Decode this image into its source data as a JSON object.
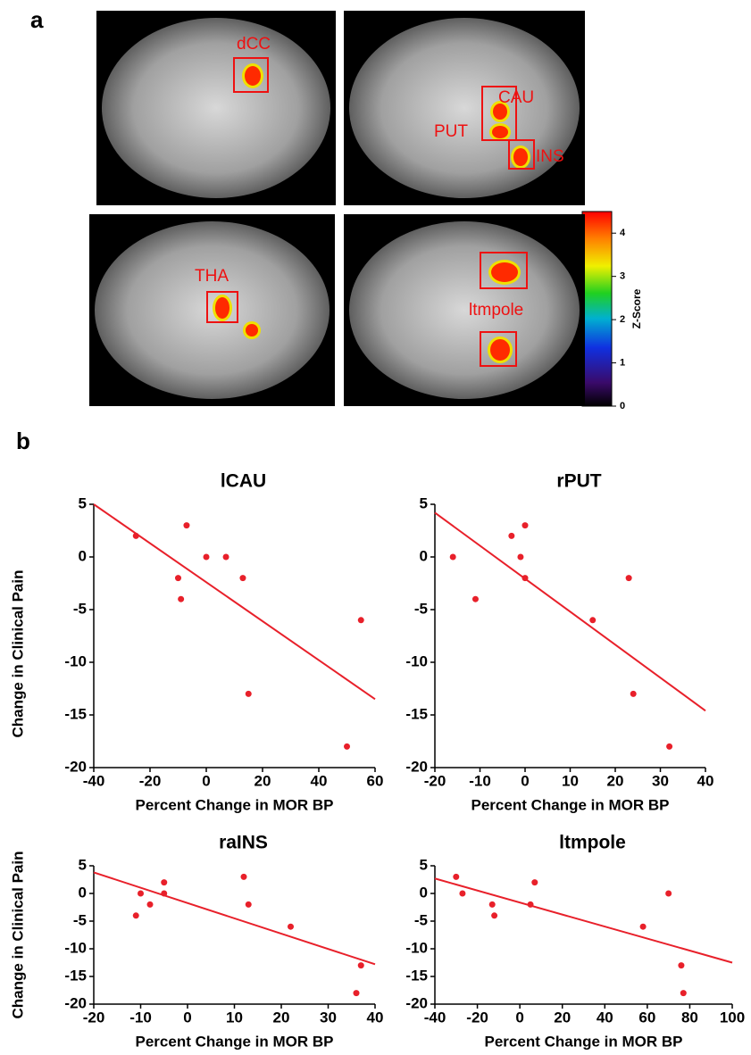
{
  "panel_a": {
    "label": "a",
    "images": [
      {
        "regions": [
          "dCC"
        ]
      },
      {
        "regions": [
          "CAU",
          "PUT",
          "INS"
        ]
      },
      {
        "regions": [
          "THA"
        ]
      },
      {
        "regions": [
          "ltmpole"
        ]
      }
    ],
    "colorbar": {
      "label": "Z-Score",
      "lim": [
        0,
        4.5
      ],
      "ticks": [
        0,
        1,
        2,
        3,
        4
      ]
    }
  },
  "panel_b": {
    "label": "b"
  },
  "chart_data": [
    {
      "type": "scatter",
      "title": "lCAU",
      "xlabel": "Percent Change in MOR BP",
      "ylabel": "Change in Clinical Pain",
      "x": [
        -25,
        -7,
        -10,
        -9,
        0,
        7,
        13,
        15,
        50,
        55
      ],
      "values": [
        2,
        3,
        -2,
        -4,
        0,
        0,
        -2,
        -13,
        -18,
        -6
      ],
      "color": "#e8202a",
      "trend": {
        "x": [
          -40,
          60
        ],
        "y": [
          5,
          -13.5
        ]
      },
      "xlim": [
        -40,
        60
      ],
      "xticks": [
        -40,
        -20,
        0,
        20,
        40,
        60
      ],
      "ylim": [
        -20,
        5
      ],
      "yticks": [
        5,
        0,
        -5,
        -10,
        -15,
        -20
      ]
    },
    {
      "type": "scatter",
      "title": "rPUT",
      "xlabel": "Percent Change in MOR BP",
      "x": [
        -16,
        -11,
        -3,
        -1,
        0,
        0,
        15,
        23,
        24,
        32
      ],
      "values": [
        0,
        -4,
        2,
        0,
        3,
        -2,
        -6,
        -2,
        -13,
        -18
      ],
      "color": "#e8202a",
      "trend": {
        "x": [
          -20,
          40
        ],
        "y": [
          4.2,
          -14.6
        ]
      },
      "xlim": [
        -20,
        40
      ],
      "xticks": [
        -20,
        -10,
        0,
        10,
        20,
        30,
        40
      ],
      "ylim": [
        -20,
        5
      ],
      "yticks": [
        5,
        0,
        -5,
        -10,
        -15,
        -20
      ]
    },
    {
      "type": "scatter",
      "title": "raINS",
      "xlabel": "Percent Change in MOR BP",
      "ylabel": "Change in Clinical Pain",
      "x": [
        -11,
        -10,
        -8,
        -5,
        -5,
        12,
        13,
        22,
        37,
        36
      ],
      "values": [
        -4,
        0,
        -2,
        2,
        0,
        3,
        -2,
        -6,
        -13,
        -18
      ],
      "color": "#e8202a",
      "trend": {
        "x": [
          -20,
          40
        ],
        "y": [
          3.8,
          -12.8
        ]
      },
      "xlim": [
        -20,
        40
      ],
      "xticks": [
        -20,
        -10,
        0,
        10,
        20,
        30,
        40
      ],
      "ylim": [
        -20,
        5
      ],
      "yticks": [
        5,
        0,
        -5,
        -10,
        -15,
        -20
      ]
    },
    {
      "type": "scatter",
      "title": "ltmpole",
      "xlabel": "Percent Change in MOR BP",
      "x": [
        -30,
        -27,
        -13,
        -12,
        5,
        7,
        58,
        70,
        76,
        77
      ],
      "values": [
        3,
        0,
        -2,
        -4,
        -2,
        2,
        -6,
        0,
        -13,
        -18
      ],
      "color": "#e8202a",
      "trend": {
        "x": [
          -40,
          100
        ],
        "y": [
          2.7,
          -12.5
        ]
      },
      "xlim": [
        -40,
        100
      ],
      "xticks": [
        -40,
        -20,
        0,
        20,
        40,
        60,
        80,
        100
      ],
      "ylim": [
        -20,
        5
      ],
      "yticks": [
        5,
        0,
        -5,
        -10,
        -15,
        -20
      ]
    }
  ]
}
